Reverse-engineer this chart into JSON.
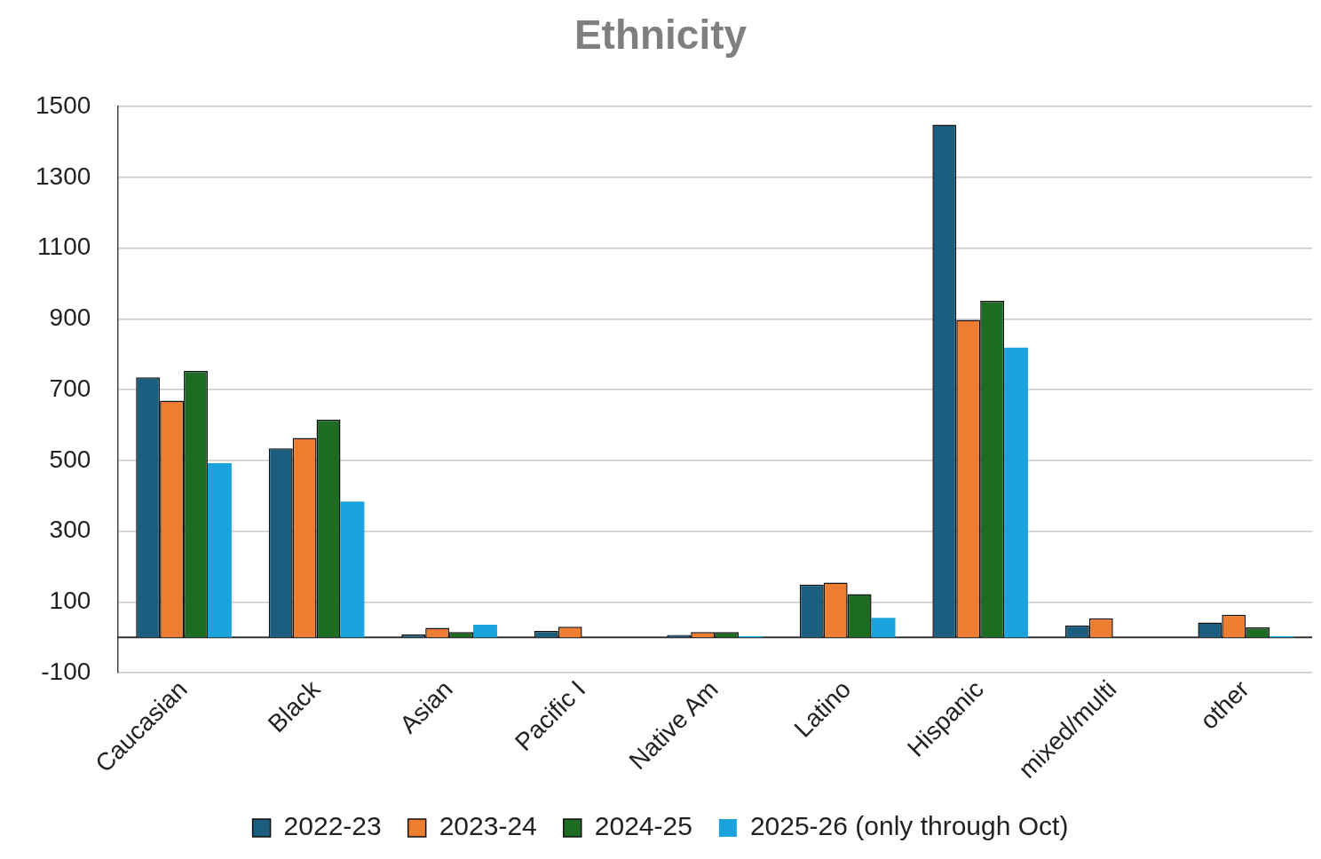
{
  "chart_data": {
    "type": "bar",
    "title": "Ethnicity",
    "categories": [
      "Caucasian",
      "Black",
      "Asian",
      "Pacific I",
      "Native Am",
      "Latino",
      "Hispanic",
      "mixed/multi",
      "other"
    ],
    "series": [
      {
        "name": "2022-23",
        "color": "#1b5e80",
        "values": [
          735,
          534,
          8,
          18,
          7,
          149,
          1449,
          34,
          42
        ]
      },
      {
        "name": "2023-24",
        "color": "#ed7d31",
        "values": [
          669,
          564,
          27,
          30,
          15,
          155,
          897,
          54,
          64
        ]
      },
      {
        "name": "2024-25",
        "color": "#1e6b24",
        "values": [
          753,
          615,
          15,
          0,
          15,
          122,
          951,
          0,
          28
        ]
      },
      {
        "name": "2025-26 (only through Oct)",
        "color": "#1aa3dc",
        "values": [
          492,
          384,
          36,
          0,
          3,
          55,
          819,
          0,
          3
        ]
      }
    ],
    "ylim": [
      -100,
      1500
    ],
    "yticks": [
      -100,
      100,
      300,
      500,
      700,
      900,
      1100,
      1300,
      1500
    ],
    "grid": "y",
    "legend": "bottom"
  }
}
